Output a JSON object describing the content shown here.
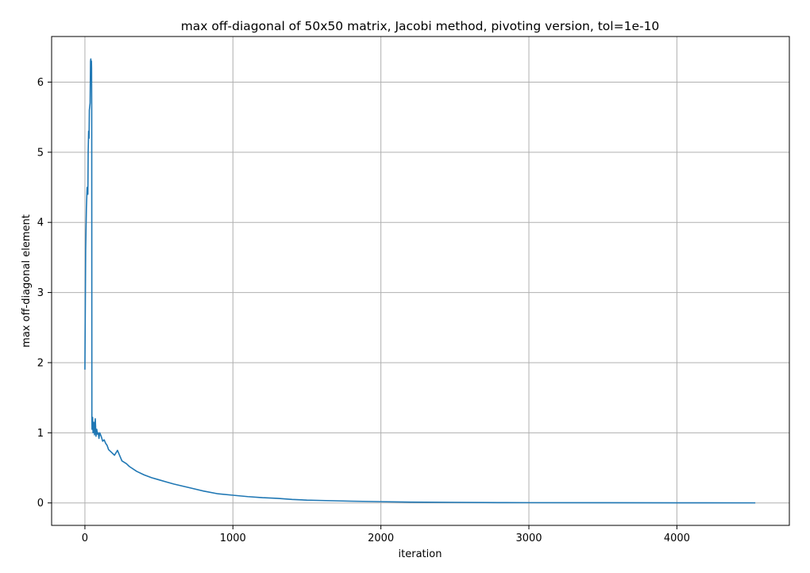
{
  "chart_data": {
    "type": "line",
    "title": "max off-diagonal of 50x50 matrix, Jacobi method, pivoting version, tol=1e-10",
    "xlabel": "iteration",
    "ylabel": "max off-diagonal element",
    "xlim": [
      -225,
      4760
    ],
    "ylim": [
      -0.32,
      6.65
    ],
    "xticks": [
      0,
      1000,
      2000,
      3000,
      4000
    ],
    "yticks": [
      0,
      1,
      2,
      3,
      4,
      5,
      6
    ],
    "grid": true,
    "series": [
      {
        "color": "#1f77b4",
        "x": [
          0,
          5,
          10,
          15,
          20,
          22,
          25,
          28,
          30,
          35,
          38,
          40,
          42,
          44,
          45,
          46,
          47,
          48,
          50,
          52,
          55,
          60,
          65,
          70,
          75,
          80,
          85,
          90,
          95,
          100,
          110,
          120,
          130,
          140,
          150,
          160,
          180,
          200,
          220,
          250,
          280,
          300,
          350,
          400,
          450,
          500,
          550,
          600,
          700,
          800,
          900,
          1000,
          1100,
          1200,
          1300,
          1400,
          1500,
          1600,
          1800,
          2000,
          2200,
          2500,
          2800,
          3000,
          3500,
          4000,
          4530
        ],
        "y": [
          1.9,
          3.6,
          4.2,
          4.5,
          4.4,
          5.0,
          5.3,
          5.2,
          5.6,
          5.7,
          6.3,
          6.33,
          6.1,
          6.3,
          6.2,
          5.6,
          1.25,
          1.05,
          1.1,
          1.22,
          1.0,
          1.15,
          0.97,
          1.2,
          0.95,
          1.05,
          0.98,
          1.0,
          0.92,
          1.0,
          0.95,
          0.88,
          0.9,
          0.85,
          0.82,
          0.76,
          0.72,
          0.68,
          0.75,
          0.6,
          0.56,
          0.52,
          0.45,
          0.4,
          0.36,
          0.33,
          0.3,
          0.27,
          0.22,
          0.17,
          0.13,
          0.11,
          0.09,
          0.075,
          0.065,
          0.05,
          0.04,
          0.035,
          0.025,
          0.018,
          0.012,
          0.008,
          0.005,
          0.004,
          0.003,
          0.002,
          0.001
        ]
      }
    ]
  }
}
